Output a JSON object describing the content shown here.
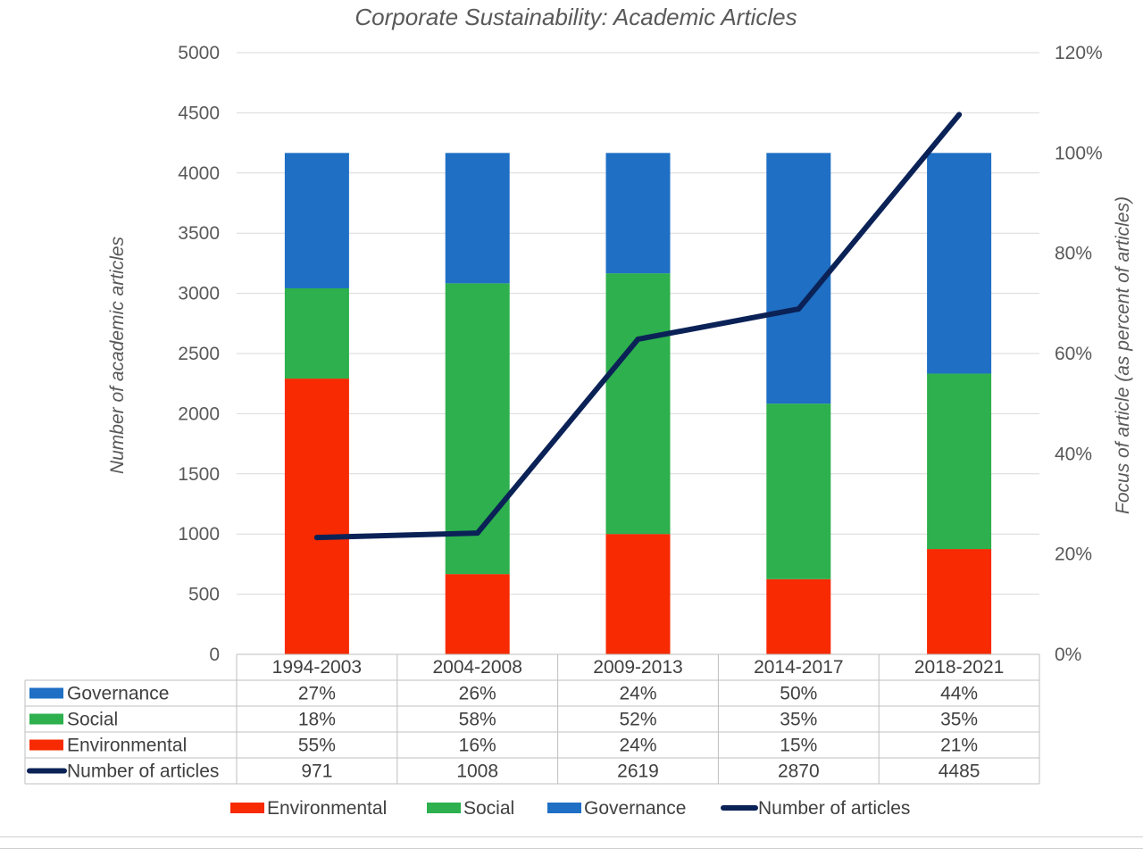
{
  "chart_data": {
    "type": "bar",
    "stacked": true,
    "title": "Corporate Sustainability: Academic Articles",
    "ylabel": "Number of academic articles",
    "y2label": "Focus of article (as percent of articles)",
    "ylim": [
      0,
      5000
    ],
    "yticks": [
      0,
      500,
      1000,
      1500,
      2000,
      2500,
      3000,
      3500,
      4000,
      4500,
      5000
    ],
    "y2lim": [
      0,
      1.2
    ],
    "y2ticks": [
      "0%",
      "20%",
      "40%",
      "60%",
      "80%",
      "100%",
      "120%"
    ],
    "y2tick_values": [
      0,
      0.2,
      0.4,
      0.6,
      0.8,
      1.0,
      1.2
    ],
    "grid": true,
    "categories": [
      "1994-2003",
      "2004-2008",
      "2009-2013",
      "2014-2017",
      "2018-2021"
    ],
    "series": [
      {
        "name": "Environmental",
        "kind": "bar",
        "axis": "secondary",
        "color": "#f72a02",
        "values": [
          0.55,
          0.16,
          0.24,
          0.15,
          0.21
        ],
        "labels": [
          "55%",
          "16%",
          "24%",
          "15%",
          "21%"
        ]
      },
      {
        "name": "Social",
        "kind": "bar",
        "axis": "secondary",
        "color": "#2db04d",
        "values": [
          0.18,
          0.58,
          0.52,
          0.35,
          0.35
        ],
        "labels": [
          "18%",
          "58%",
          "52%",
          "35%",
          "35%"
        ]
      },
      {
        "name": "Governance",
        "kind": "bar",
        "axis": "secondary",
        "color": "#1f6fc4",
        "values": [
          0.27,
          0.26,
          0.24,
          0.5,
          0.44
        ],
        "labels": [
          "27%",
          "26%",
          "24%",
          "50%",
          "44%"
        ]
      },
      {
        "name": "Number of articles",
        "kind": "line",
        "axis": "primary",
        "color": "#0b2257",
        "values": [
          971,
          1008,
          2619,
          2870,
          4485
        ],
        "labels": [
          "971",
          "1008",
          "2619",
          "2870",
          "4485"
        ]
      }
    ],
    "table_row_order": [
      "Governance",
      "Social",
      "Environmental",
      "Number of articles"
    ],
    "legend_order": [
      "Environmental",
      "Social",
      "Governance",
      "Number of articles"
    ],
    "legend_position": "bottom"
  }
}
